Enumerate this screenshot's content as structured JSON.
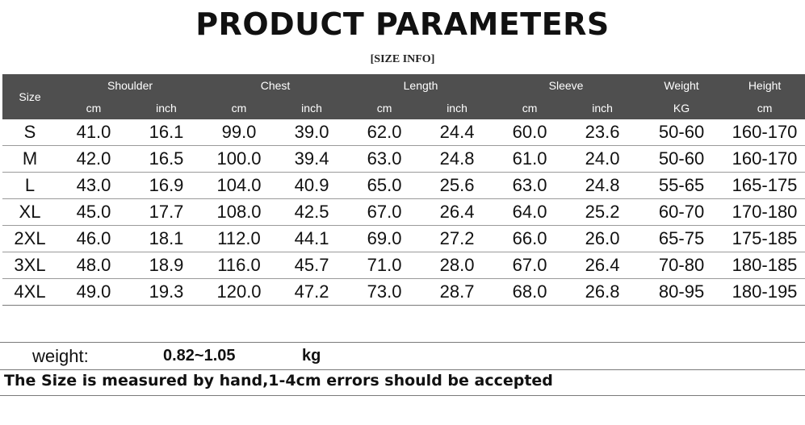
{
  "title": "PRODUCT PARAMETERS",
  "subtitle": "[SIZE INFO]",
  "table": {
    "size_header": "Size",
    "groups": [
      "Shoulder",
      "Chest",
      "Length",
      "Sleeve",
      "Weight",
      "Height"
    ],
    "units": [
      "cm",
      "inch",
      "cm",
      "inch",
      "cm",
      "inch",
      "cm",
      "inch",
      "KG",
      "cm"
    ],
    "rows": [
      [
        "S",
        "41.0",
        "16.1",
        "99.0",
        "39.0",
        "62.0",
        "24.4",
        "60.0",
        "23.6",
        "50-60",
        "160-170"
      ],
      [
        "M",
        "42.0",
        "16.5",
        "100.0",
        "39.4",
        "63.0",
        "24.8",
        "61.0",
        "24.0",
        "50-60",
        "160-170"
      ],
      [
        "L",
        "43.0",
        "16.9",
        "104.0",
        "40.9",
        "65.0",
        "25.6",
        "63.0",
        "24.8",
        "55-65",
        "165-175"
      ],
      [
        "XL",
        "45.0",
        "17.7",
        "108.0",
        "42.5",
        "67.0",
        "26.4",
        "64.0",
        "25.2",
        "60-70",
        "170-180"
      ],
      [
        "2XL",
        "46.0",
        "18.1",
        "112.0",
        "44.1",
        "69.0",
        "27.2",
        "66.0",
        "26.0",
        "65-75",
        "175-185"
      ],
      [
        "3XL",
        "48.0",
        "18.9",
        "116.0",
        "45.7",
        "71.0",
        "28.0",
        "67.0",
        "26.4",
        "70-80",
        "180-185"
      ],
      [
        "4XL",
        "49.0",
        "19.3",
        "120.0",
        "47.2",
        "73.0",
        "28.7",
        "68.0",
        "26.8",
        "80-95",
        "180-195"
      ]
    ]
  },
  "weight": {
    "label": "weight:",
    "value": "0.82~1.05",
    "unit": "kg"
  },
  "note": "The Size is measured by hand,1-4cm errors should be accepted",
  "colors": {
    "header_bg": "#4f4f4f",
    "header_text": "#ffffff",
    "text": "#111111"
  }
}
